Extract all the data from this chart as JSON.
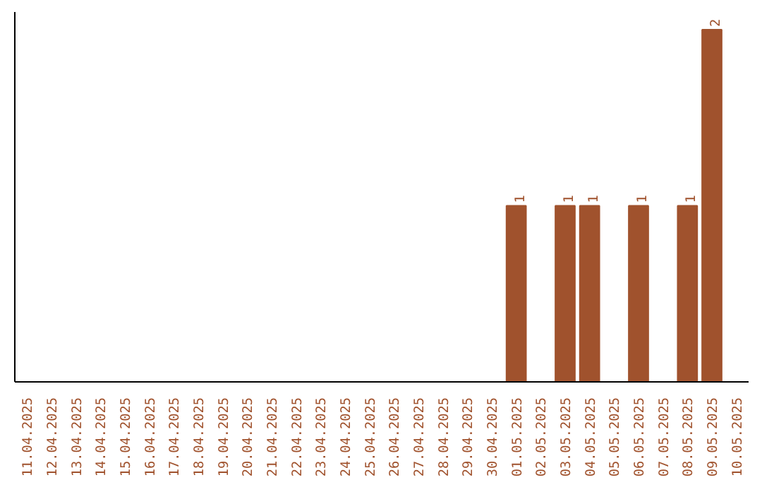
{
  "chart_data": {
    "type": "bar",
    "categories": [
      "11.04.2025",
      "12.04.2025",
      "13.04.2025",
      "14.04.2025",
      "15.04.2025",
      "16.04.2025",
      "17.04.2025",
      "18.04.2025",
      "19.04.2025",
      "20.04.2025",
      "21.04.2025",
      "22.04.2025",
      "23.04.2025",
      "24.04.2025",
      "25.04.2025",
      "26.04.2025",
      "27.04.2025",
      "28.04.2025",
      "29.04.2025",
      "30.04.2025",
      "01.05.2025",
      "02.05.2025",
      "03.05.2025",
      "04.05.2025",
      "05.05.2025",
      "06.05.2025",
      "07.05.2025",
      "08.05.2025",
      "09.05.2025",
      "10.05.2025"
    ],
    "values": [
      null,
      null,
      null,
      null,
      null,
      null,
      null,
      null,
      null,
      null,
      null,
      null,
      null,
      null,
      null,
      null,
      null,
      null,
      null,
      null,
      1,
      null,
      1,
      1,
      null,
      1,
      null,
      1,
      2,
      null
    ],
    "data_labels": true,
    "color": "#a0522d",
    "grid": false,
    "tick_labels": "x"
  }
}
